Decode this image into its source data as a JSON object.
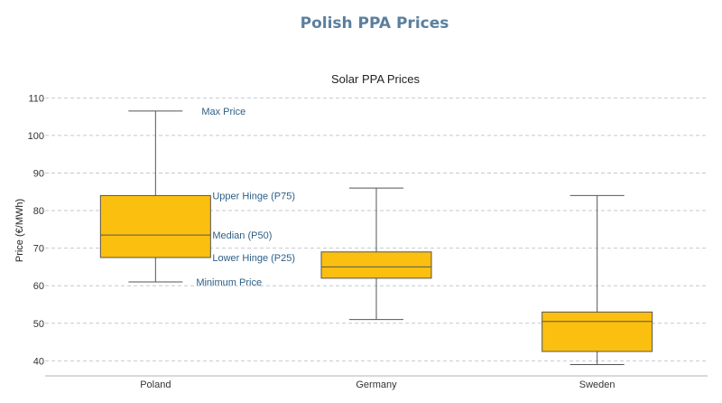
{
  "header": {
    "title": "Polish PPA Prices"
  },
  "colors": {
    "title": "#5b7f9e",
    "box_fill": "#fbbf10",
    "box_stroke": "#555555",
    "annotation": "#2e5f86",
    "grid": "#c2c9d2",
    "axis": "#aab4bf"
  },
  "chart_data": {
    "type": "box",
    "title": "Solar PPA Prices",
    "xlabel": "",
    "ylabel": "Price (€/MWh)",
    "ylim": [
      36,
      112
    ],
    "yticks": [
      40,
      50,
      60,
      70,
      80,
      90,
      100,
      110
    ],
    "grid": true,
    "categories": [
      "Poland",
      "Germany",
      "Sweden"
    ],
    "boxes": [
      {
        "category": "Poland",
        "min": 61,
        "q1": 67.5,
        "median": 73.5,
        "q3": 84,
        "max": 106.5
      },
      {
        "category": "Germany",
        "min": 51,
        "q1": 62,
        "median": 65,
        "q3": 69,
        "max": 86
      },
      {
        "category": "Sweden",
        "min": 39,
        "q1": 42.5,
        "median": 50.5,
        "q3": 53,
        "max": 84
      }
    ],
    "annotations": {
      "max": "Max Price",
      "q3": "Upper Hinge (P75)",
      "median": "Median (P50)",
      "q1": "Lower Hinge (P25)",
      "min": "Minimum Price"
    }
  }
}
